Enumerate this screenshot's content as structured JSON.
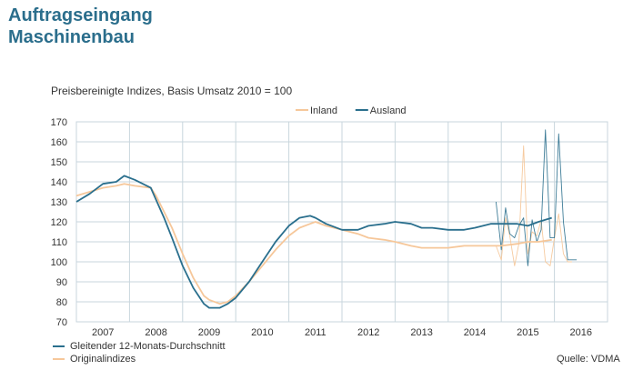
{
  "header": {
    "title_line1": "Auftragseingang",
    "title_line2": "Maschinenbau",
    "subtitle": "Preisbereinigte Indizes, Basis Umsatz 2010 = 100"
  },
  "footer": {
    "legend_smoothed": "Gleitender 12-Monats-Durchschnitt",
    "legend_original": "Originalindizes",
    "source": "Quelle: VDMA"
  },
  "colors": {
    "inland": "#f6c79a",
    "ausland": "#2a6f8d",
    "grid": "#c8d6dd"
  },
  "chart_data": {
    "type": "line",
    "title": "Preisbereinigte Indizes, Basis Umsatz 2010 = 100",
    "xlabel": "",
    "ylabel": "",
    "ylim": [
      70,
      170
    ],
    "yticks": [
      70,
      80,
      90,
      100,
      110,
      120,
      130,
      140,
      150,
      160,
      170
    ],
    "xlim": [
      2006.5,
      2016.5
    ],
    "xticks": [
      "2007",
      "2008",
      "2009",
      "2010",
      "2011",
      "2012",
      "2013",
      "2014",
      "2015",
      "2016"
    ],
    "grid": true,
    "legend_position": "top-right",
    "legend": [
      "Inland",
      "Ausland"
    ],
    "series": [
      {
        "name": "Ausland",
        "kind": "smoothed",
        "x": [
          2006.5,
          2006.75,
          2007.0,
          2007.25,
          2007.4,
          2007.6,
          2007.9,
          2008.0,
          2008.15,
          2008.3,
          2008.5,
          2008.7,
          2008.9,
          2009.0,
          2009.2,
          2009.35,
          2009.5,
          2009.75,
          2010.0,
          2010.25,
          2010.5,
          2010.7,
          2010.9,
          2011.0,
          2011.2,
          2011.5,
          2011.8,
          2012.0,
          2012.3,
          2012.5,
          2012.8,
          2013.0,
          2013.2,
          2013.5,
          2013.8,
          2014.0,
          2014.3,
          2014.5,
          2014.8,
          2015.0,
          2015.2,
          2015.45
        ],
        "y": [
          130,
          134,
          139,
          140,
          143,
          141,
          137,
          131,
          122,
          112,
          98,
          87,
          79,
          77,
          77,
          79,
          82,
          90,
          100,
          110,
          118,
          122,
          123,
          122,
          119,
          116,
          116,
          118,
          119,
          120,
          119,
          117,
          117,
          116,
          116,
          117,
          119,
          119,
          119,
          118,
          120,
          122
        ]
      },
      {
        "name": "Inland",
        "kind": "smoothed",
        "x": [
          2006.5,
          2006.75,
          2007.0,
          2007.25,
          2007.4,
          2007.6,
          2007.9,
          2008.0,
          2008.15,
          2008.3,
          2008.5,
          2008.7,
          2008.9,
          2009.0,
          2009.2,
          2009.35,
          2009.5,
          2009.75,
          2010.0,
          2010.25,
          2010.5,
          2010.7,
          2010.9,
          2011.0,
          2011.2,
          2011.5,
          2011.8,
          2012.0,
          2012.3,
          2012.5,
          2012.8,
          2013.0,
          2013.2,
          2013.5,
          2013.8,
          2014.0,
          2014.3,
          2014.5,
          2014.8,
          2015.0,
          2015.2,
          2015.45
        ],
        "y": [
          133,
          135,
          137,
          138,
          139,
          138,
          137,
          133,
          125,
          117,
          104,
          92,
          83,
          81,
          79,
          80,
          83,
          90,
          98,
          106,
          113,
          117,
          119,
          120,
          118,
          116,
          114,
          112,
          111,
          110,
          108,
          107,
          107,
          107,
          108,
          108,
          108,
          108,
          109,
          110,
          110,
          111
        ]
      },
      {
        "name": "Ausland",
        "kind": "original",
        "x": [
          2014.4,
          2014.5,
          2014.58,
          2014.66,
          2014.75,
          2014.83,
          2014.92,
          2015.0,
          2015.08,
          2015.17,
          2015.25,
          2015.33,
          2015.42,
          2015.5,
          2015.58,
          2015.67,
          2015.75,
          2015.83,
          2015.92
        ],
        "y": [
          130,
          106,
          127,
          114,
          112,
          118,
          122,
          98,
          121,
          110,
          116,
          166,
          112,
          112,
          164,
          120,
          101,
          101,
          101
        ]
      },
      {
        "name": "Inland",
        "kind": "original",
        "x": [
          2014.4,
          2014.5,
          2014.58,
          2014.66,
          2014.75,
          2014.83,
          2014.92,
          2015.0,
          2015.08,
          2015.17,
          2015.25,
          2015.33,
          2015.42,
          2015.5,
          2015.58,
          2015.67,
          2015.75,
          2015.83
        ],
        "y": [
          108,
          101,
          122,
          113,
          98,
          109,
          158,
          104,
          115,
          113,
          121,
          100,
          98,
          112,
          124,
          104,
          100,
          100
        ]
      }
    ]
  }
}
